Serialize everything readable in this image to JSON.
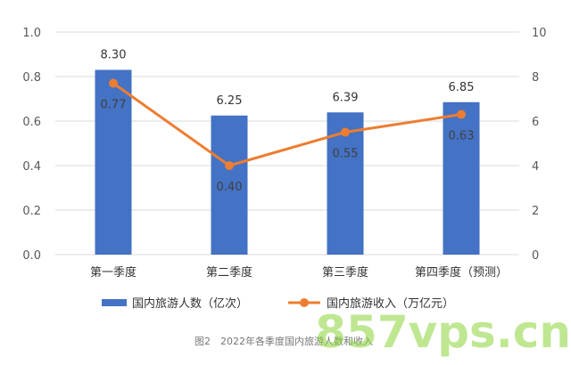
{
  "chart_data": {
    "type": "bar",
    "categories": [
      "第一季度",
      "第二季度",
      "第三季度",
      "第四季度（预测）"
    ],
    "series": [
      {
        "name": "国内旅游人数（亿次）",
        "type": "bar",
        "axis": "right",
        "values": [
          8.3,
          6.25,
          6.39,
          6.85
        ],
        "labels": [
          "8.30",
          "6.25",
          "6.39",
          "6.85"
        ]
      },
      {
        "name": "国内旅游收入（万亿元）",
        "type": "line",
        "axis": "left",
        "values": [
          0.77,
          0.4,
          0.55,
          0.63
        ],
        "labels": [
          "0.77",
          "0.40",
          "0.55",
          "0.63"
        ]
      }
    ],
    "y_left": {
      "ylim": [
        0,
        1.0
      ],
      "ticks": [
        "0.0",
        "0.2",
        "0.4",
        "0.6",
        "0.8",
        "1.0"
      ]
    },
    "y_right": {
      "ylim": [
        0,
        10
      ],
      "ticks": [
        "0",
        "2",
        "4",
        "6",
        "8",
        "10"
      ]
    },
    "grid": true,
    "legend_position": "bottom",
    "caption": "图2　2022年各季度国内旅游人数和收入"
  },
  "colors": {
    "bar": "#4472c4",
    "line": "#ed7d31",
    "marker": "#ed7d31",
    "grid": "#d9d9d9"
  },
  "watermark": "857vps.cn"
}
